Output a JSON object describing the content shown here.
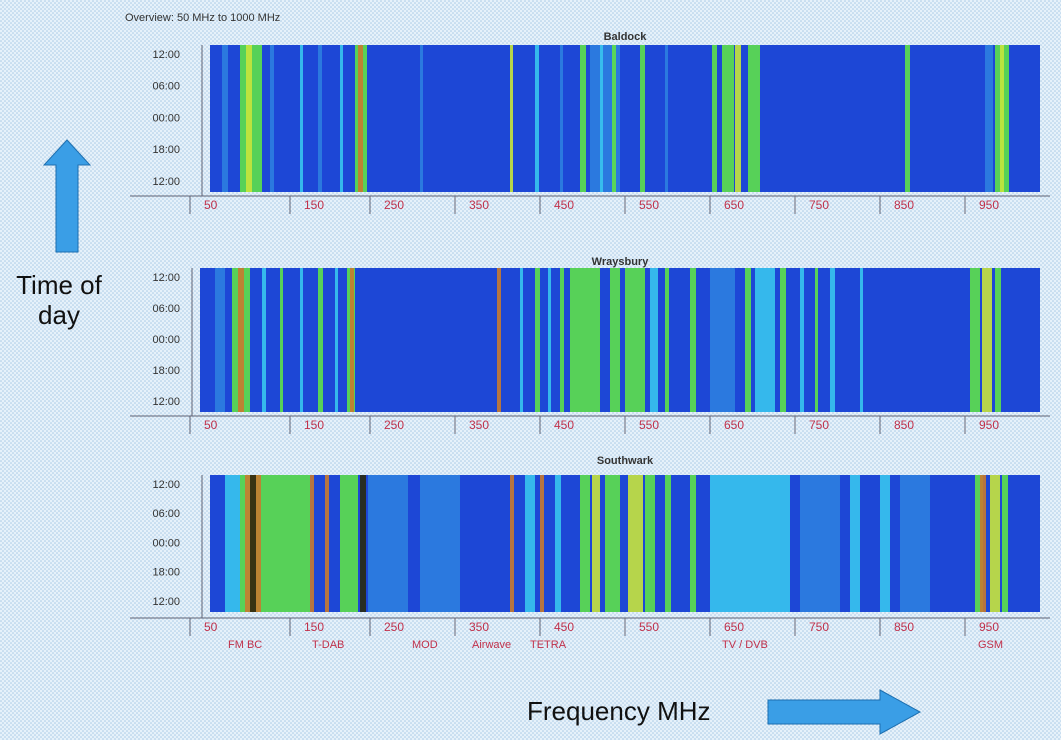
{
  "overview": "Overview:  50 MHz to 1000 MHz",
  "panels": [
    {
      "title": "Baldock",
      "time_labels": [
        "12:00",
        "06:00",
        "00:00",
        "18:00",
        "12:00"
      ],
      "freq_labels": [
        "50",
        "150",
        "250",
        "350",
        "450",
        "550",
        "650",
        "750",
        "850",
        "950"
      ]
    },
    {
      "title": "Wraysbury",
      "time_labels": [
        "12:00",
        "06:00",
        "00:00",
        "18:00",
        "12:00"
      ],
      "freq_labels": [
        "50",
        "150",
        "250",
        "350",
        "450",
        "550",
        "650",
        "750",
        "850",
        "950"
      ]
    },
    {
      "title": "Southwark",
      "time_labels": [
        "12:00",
        "06:00",
        "00:00",
        "18:00",
        "12:00"
      ],
      "freq_labels": [
        "50",
        "150",
        "250",
        "350",
        "450",
        "550",
        "650",
        "750",
        "850",
        "950"
      ]
    }
  ],
  "band_labels": [
    "FM BC",
    "T-DAB",
    "MOD",
    "Airwave",
    "TETRA",
    "TV / DVB",
    "GSM"
  ],
  "y_label": "Time of day",
  "x_label": "Frequency MHz"
}
